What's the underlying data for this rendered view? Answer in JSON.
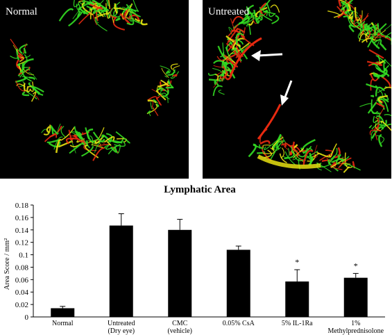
{
  "panels": {
    "left": {
      "label": "Normal",
      "colors": {
        "lymph": "#33dd22",
        "blood": "#e82a10",
        "overlap": "#e8e010"
      }
    },
    "right": {
      "label": "Untreated",
      "colors": {
        "lymph": "#33dd22",
        "blood": "#e82a10",
        "overlap": "#e8e010"
      },
      "arrows": 2
    }
  },
  "chart_data": {
    "type": "bar",
    "title": "Lymphatic Area",
    "ylabel": "Area Score / mm²",
    "xlabel": "",
    "ylim": [
      0,
      0.18
    ],
    "yticks": [
      0,
      0.02,
      0.04,
      0.06,
      0.08,
      0.1,
      0.12,
      0.14,
      0.16,
      0.18
    ],
    "ytick_labels": [
      "0",
      "0.02",
      "0.04",
      "0.06",
      "0.08",
      "0.1",
      "0.12",
      "0.14",
      "0.16",
      "0.18"
    ],
    "categories": [
      [
        "Normal"
      ],
      [
        "Untreated",
        "(Dry eye)"
      ],
      [
        "CMC",
        "(vehicle)"
      ],
      [
        "0.05% CsA"
      ],
      [
        "5% IL-1Ra"
      ],
      [
        "1%",
        "Methylprednisolone"
      ]
    ],
    "values": [
      0.014,
      0.147,
      0.14,
      0.108,
      0.057,
      0.063
    ],
    "errors": [
      0.003,
      0.019,
      0.017,
      0.006,
      0.019,
      0.007
    ],
    "significance": [
      "",
      "",
      "",
      "",
      "*",
      "*"
    ],
    "bar_color": "#000000",
    "grid": false
  }
}
